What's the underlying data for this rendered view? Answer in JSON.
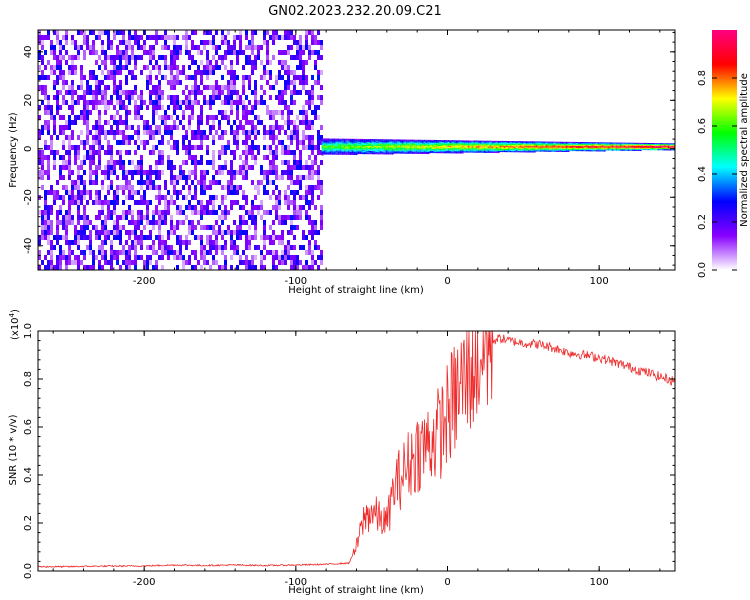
{
  "figure_title": "GN02.2023.232.20.09.C21",
  "chart_data": [
    {
      "type": "heatmap",
      "xlabel": "Height of straight line (km)",
      "ylabel": "Frequency (Hz)",
      "xlim": [
        -270,
        150
      ],
      "ylim": [
        -50,
        49
      ],
      "x_ticks": [
        -200,
        -100,
        0,
        100
      ],
      "x_tick_labels": [
        "-200",
        "-100",
        "0",
        "100"
      ],
      "y_ticks": [
        -40,
        -20,
        0,
        20,
        40
      ],
      "y_tick_labels": [
        "-40",
        "-20",
        "0",
        "20",
        "40"
      ],
      "noise_region_x": [
        -270,
        -83
      ],
      "signal_line_frequency": 1,
      "colorbar": {
        "label": "Normalized spectral amplitude",
        "range": [
          0,
          1
        ],
        "ticks": [
          0,
          0.2,
          0.4,
          0.6,
          0.8
        ],
        "tick_labels": [
          "0.0",
          "0.2",
          "0.4",
          "0.6",
          "0.8"
        ],
        "colormap": [
          "#ffffff",
          "#8800ff",
          "#0000ff",
          "#00ffff",
          "#00ff00",
          "#ffff00",
          "#ff0000",
          "#ff0080"
        ]
      }
    },
    {
      "type": "line",
      "xlabel": "Height of straight line (km)",
      "ylabel": "SNR (10 * v/v)",
      "scale_label": "(x10",
      "scale_exponent": "4",
      "scale_close": ")",
      "xlim": [
        -270,
        150
      ],
      "ylim": [
        0,
        1.0
      ],
      "x_ticks": [
        -200,
        -100,
        0,
        100
      ],
      "x_tick_labels": [
        "-200",
        "-100",
        "0",
        "100"
      ],
      "y_ticks": [
        0,
        0.2,
        0.4,
        0.6,
        0.8,
        1.0
      ],
      "y_tick_labels": [
        "0.0",
        "0.2",
        "0.4",
        "0.6",
        "0.8",
        "1.0"
      ],
      "series": [
        {
          "name": "SNR",
          "color": "#ee2a2a",
          "x": [
            -270,
            -250,
            -230,
            -200,
            -180,
            -160,
            -140,
            -120,
            -100,
            -80,
            -65,
            -60,
            -55,
            -50,
            -45,
            -40,
            -35,
            -30,
            -25,
            -20,
            -15,
            -10,
            -5,
            0,
            5,
            10,
            15,
            20,
            25,
            30,
            35,
            40,
            45,
            50,
            60,
            70,
            80,
            90,
            100,
            110,
            120,
            130,
            140,
            150
          ],
          "y": [
            0.015,
            0.015,
            0.017,
            0.018,
            0.022,
            0.02,
            0.022,
            0.02,
            0.022,
            0.025,
            0.03,
            0.1,
            0.22,
            0.25,
            0.22,
            0.2,
            0.35,
            0.4,
            0.45,
            0.5,
            0.52,
            0.55,
            0.58,
            0.65,
            0.72,
            0.78,
            0.85,
            0.9,
            0.94,
            0.96,
            0.97,
            0.96,
            0.955,
            0.95,
            0.945,
            0.93,
            0.91,
            0.9,
            0.89,
            0.87,
            0.85,
            0.83,
            0.81,
            0.79
          ]
        }
      ]
    }
  ]
}
